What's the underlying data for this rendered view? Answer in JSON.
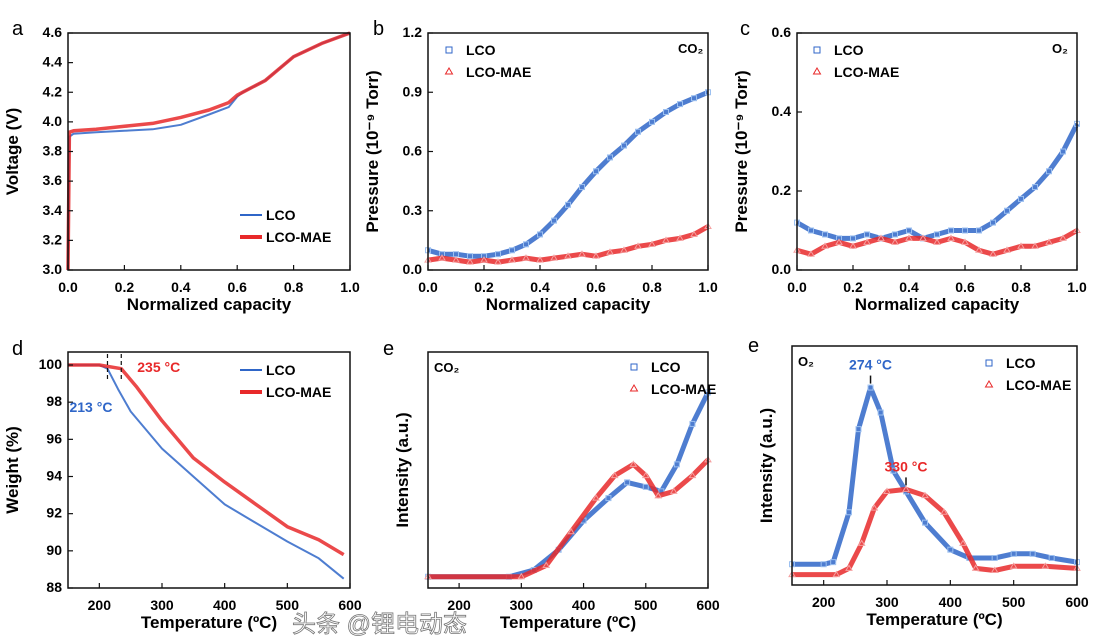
{
  "watermark": "头条 @锂电动态",
  "colors": {
    "LCO": "#2f66c8",
    "LCO-MAE": "#e8292a",
    "annot_blue": "#2f66c8",
    "annot_red": "#e8292a"
  },
  "chart_data": [
    {
      "panel": "a",
      "type": "line",
      "xlabel": "Normalized capacity",
      "ylabel": "Voltage (V)",
      "xlim": [
        0,
        1
      ],
      "ylim": [
        3.0,
        4.6
      ],
      "xticks": [
        "0.0",
        "0.2",
        "0.4",
        "0.6",
        "0.8",
        "1.0"
      ],
      "yticks": [
        "3.0",
        "3.2",
        "3.4",
        "3.6",
        "3.8",
        "4.0",
        "4.2",
        "4.4",
        "4.6"
      ],
      "legend": "bottom-right",
      "marker": "line",
      "series": [
        {
          "name": "LCO",
          "x": [
            0,
            0.005,
            0.02,
            0.1,
            0.2,
            0.3,
            0.4,
            0.5,
            0.57,
            0.6,
            0.62,
            0.7,
            0.8,
            0.9,
            1.0
          ],
          "y": [
            3.0,
            3.9,
            3.92,
            3.93,
            3.94,
            3.95,
            3.98,
            4.05,
            4.1,
            4.17,
            4.2,
            4.28,
            4.44,
            4.53,
            4.6
          ]
        },
        {
          "name": "LCO-MAE",
          "x": [
            0,
            0.005,
            0.02,
            0.1,
            0.2,
            0.3,
            0.4,
            0.5,
            0.57,
            0.6,
            0.62,
            0.7,
            0.8,
            0.9,
            1.0
          ],
          "y": [
            3.0,
            3.93,
            3.94,
            3.95,
            3.97,
            3.99,
            4.03,
            4.08,
            4.13,
            4.18,
            4.2,
            4.28,
            4.44,
            4.53,
            4.6
          ]
        }
      ]
    },
    {
      "panel": "b",
      "type": "scatter",
      "xlabel": "Normalized capacity",
      "ylabel": "Pressure (10⁻⁹ Torr)",
      "gas": "CO₂",
      "xlim": [
        0,
        1
      ],
      "ylim": [
        0,
        1.2
      ],
      "xticks": [
        "0.0",
        "0.2",
        "0.4",
        "0.6",
        "0.8",
        "1.0"
      ],
      "yticks": [
        "0.0",
        "0.3",
        "0.6",
        "0.9",
        "1.2"
      ],
      "legend": "top-left",
      "marker": "square/triangle",
      "series": [
        {
          "name": "LCO",
          "x": [
            0,
            0.05,
            0.1,
            0.15,
            0.2,
            0.25,
            0.3,
            0.35,
            0.4,
            0.45,
            0.5,
            0.55,
            0.6,
            0.65,
            0.7,
            0.75,
            0.8,
            0.85,
            0.9,
            0.95,
            1.0
          ],
          "y": [
            0.1,
            0.08,
            0.08,
            0.07,
            0.07,
            0.08,
            0.1,
            0.13,
            0.18,
            0.25,
            0.33,
            0.42,
            0.5,
            0.57,
            0.63,
            0.7,
            0.75,
            0.8,
            0.84,
            0.87,
            0.9
          ]
        },
        {
          "name": "LCO-MAE",
          "x": [
            0,
            0.05,
            0.1,
            0.15,
            0.2,
            0.25,
            0.3,
            0.35,
            0.4,
            0.45,
            0.5,
            0.55,
            0.6,
            0.65,
            0.7,
            0.75,
            0.8,
            0.85,
            0.9,
            0.95,
            1.0
          ],
          "y": [
            0.05,
            0.06,
            0.05,
            0.04,
            0.05,
            0.04,
            0.05,
            0.06,
            0.05,
            0.06,
            0.07,
            0.08,
            0.07,
            0.09,
            0.1,
            0.12,
            0.13,
            0.15,
            0.16,
            0.18,
            0.22
          ]
        }
      ]
    },
    {
      "panel": "c",
      "type": "scatter",
      "xlabel": "Normalized capacity",
      "ylabel": "Pressure (10⁻⁹ Torr)",
      "gas": "O₂",
      "xlim": [
        0,
        1
      ],
      "ylim": [
        0,
        0.6
      ],
      "xticks": [
        "0.0",
        "0.2",
        "0.4",
        "0.6",
        "0.8",
        "1.0"
      ],
      "yticks": [
        "0.0",
        "0.2",
        "0.4",
        "0.6"
      ],
      "legend": "top-left",
      "marker": "square/triangle",
      "series": [
        {
          "name": "LCO",
          "x": [
            0,
            0.05,
            0.1,
            0.15,
            0.2,
            0.25,
            0.3,
            0.35,
            0.4,
            0.45,
            0.5,
            0.55,
            0.6,
            0.65,
            0.7,
            0.75,
            0.8,
            0.85,
            0.9,
            0.95,
            1.0
          ],
          "y": [
            0.12,
            0.1,
            0.09,
            0.08,
            0.08,
            0.09,
            0.08,
            0.09,
            0.1,
            0.08,
            0.09,
            0.1,
            0.1,
            0.1,
            0.12,
            0.15,
            0.18,
            0.21,
            0.25,
            0.3,
            0.37
          ]
        },
        {
          "name": "LCO-MAE",
          "x": [
            0,
            0.05,
            0.1,
            0.15,
            0.2,
            0.25,
            0.3,
            0.35,
            0.4,
            0.45,
            0.5,
            0.55,
            0.6,
            0.65,
            0.7,
            0.75,
            0.8,
            0.85,
            0.9,
            0.95,
            1.0
          ],
          "y": [
            0.05,
            0.04,
            0.06,
            0.07,
            0.06,
            0.07,
            0.08,
            0.07,
            0.08,
            0.08,
            0.07,
            0.08,
            0.07,
            0.05,
            0.04,
            0.05,
            0.06,
            0.06,
            0.07,
            0.08,
            0.1
          ]
        }
      ]
    },
    {
      "panel": "d",
      "type": "line",
      "xlabel": "Temperature (ºC)",
      "ylabel": "Weight (%)",
      "xlim": [
        150,
        600
      ],
      "ylim": [
        88,
        100.7
      ],
      "xticks": [
        "200",
        "300",
        "400",
        "500",
        "600"
      ],
      "yticks": [
        "88",
        "90",
        "92",
        "94",
        "96",
        "98",
        "100"
      ],
      "legend": "top-right",
      "marker": "line",
      "annotations": [
        {
          "text": "213 °C",
          "x": 213,
          "series": "LCO"
        },
        {
          "text": "235 °C",
          "x": 235,
          "series": "LCO-MAE"
        }
      ],
      "series": [
        {
          "name": "LCO",
          "x": [
            150,
            200,
            213,
            230,
            250,
            300,
            350,
            400,
            450,
            500,
            550,
            590
          ],
          "y": [
            100,
            100,
            99.8,
            98.7,
            97.5,
            95.5,
            94,
            92.5,
            91.5,
            90.5,
            89.6,
            88.5
          ]
        },
        {
          "name": "LCO-MAE",
          "x": [
            150,
            200,
            235,
            260,
            300,
            350,
            400,
            450,
            500,
            550,
            590
          ],
          "y": [
            100,
            100,
            99.8,
            98.8,
            97,
            95,
            93.7,
            92.5,
            91.3,
            90.6,
            89.8
          ]
        }
      ]
    },
    {
      "panel": "e",
      "type": "scatter",
      "xlabel": "Temperature (ºC)",
      "ylabel": "Intensity (a.u.)",
      "gas": "CO₂",
      "xlim": [
        150,
        600
      ],
      "ylim": [
        -0.05,
        1
      ],
      "xticks": [
        "200",
        "300",
        "400",
        "500",
        "600"
      ],
      "yticks": [],
      "legend": "top-right",
      "marker": "circle/triangle",
      "series": [
        {
          "name": "LCO",
          "x": [
            150,
            280,
            320,
            360,
            400,
            440,
            470,
            500,
            525,
            550,
            575,
            600
          ],
          "y": [
            0,
            0,
            0.03,
            0.12,
            0.25,
            0.35,
            0.42,
            0.4,
            0.38,
            0.5,
            0.68,
            0.82
          ]
        },
        {
          "name": "LCO-MAE",
          "x": [
            150,
            300,
            340,
            380,
            420,
            450,
            480,
            500,
            520,
            545,
            575,
            600
          ],
          "y": [
            0,
            0,
            0.05,
            0.2,
            0.35,
            0.45,
            0.5,
            0.45,
            0.36,
            0.38,
            0.45,
            0.52
          ]
        }
      ]
    },
    {
      "panel": "e",
      "type": "scatter",
      "xlabel": "Temperature (ºC)",
      "ylabel": "Intensity (a.u.)",
      "gas": "O₂",
      "xlim": [
        150,
        600
      ],
      "ylim": [
        -0.05,
        1.1
      ],
      "xticks": [
        "200",
        "300",
        "400",
        "500",
        "600"
      ],
      "yticks": [],
      "legend": "top-right",
      "marker": "circle/triangle",
      "annotations": [
        {
          "text": "274 °C",
          "x": 274,
          "series": "LCO"
        },
        {
          "text": "330 °C",
          "x": 330,
          "series": "LCO-MAE"
        }
      ],
      "series": [
        {
          "name": "LCO",
          "x": [
            150,
            200,
            215,
            240,
            255,
            274,
            290,
            310,
            330,
            360,
            400,
            430,
            470,
            500,
            530,
            560,
            600
          ],
          "y": [
            0.05,
            0.05,
            0.06,
            0.3,
            0.7,
            0.9,
            0.78,
            0.5,
            0.4,
            0.25,
            0.12,
            0.08,
            0.08,
            0.1,
            0.1,
            0.08,
            0.06
          ]
        },
        {
          "name": "LCO-MAE",
          "x": [
            150,
            220,
            240,
            260,
            280,
            300,
            330,
            360,
            390,
            420,
            440,
            470,
            500,
            550,
            600
          ],
          "y": [
            0,
            0,
            0.03,
            0.15,
            0.32,
            0.4,
            0.41,
            0.38,
            0.3,
            0.15,
            0.03,
            0.02,
            0.04,
            0.04,
            0.03
          ]
        }
      ]
    }
  ]
}
